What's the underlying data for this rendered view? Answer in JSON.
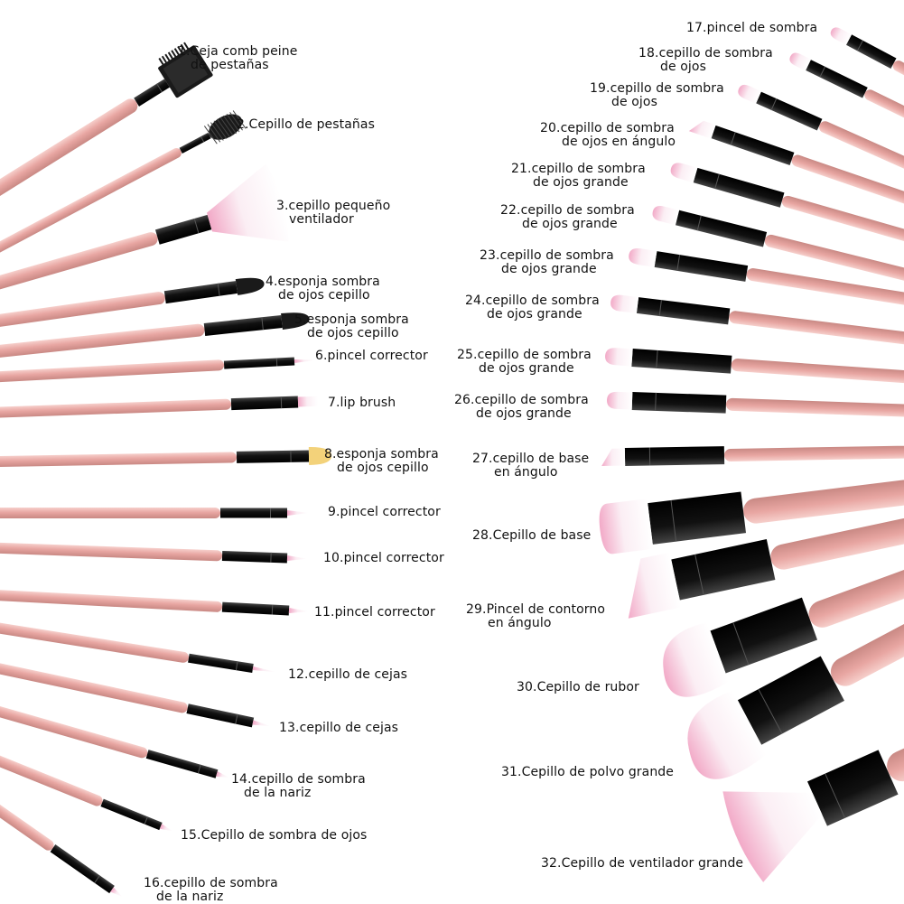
{
  "colors": {
    "handle": "#e8a6a2",
    "handle_highlight": "#f6cfcb",
    "handle_shadow": "#c98984",
    "ferrule": "#111111",
    "bristle_white": "#ffffff",
    "bristle_tip": "#f2a9c7",
    "sponge": "#f3d27a",
    "comb": "#1a1a1a"
  },
  "brushes": [
    {
      "number": "1",
      "icon": "eyebrow-comb-icon",
      "line1": "1.Ceja comb peine",
      "line2": "de pestañas"
    },
    {
      "number": "2",
      "icon": "spoolie-icon",
      "line1": "2.Cepillo de pestañas",
      "line2": ""
    },
    {
      "number": "3",
      "icon": "small-fan-brush-icon",
      "line1": "3.cepillo pequeño",
      "line2": "ventilador"
    },
    {
      "number": "4",
      "icon": "sponge-applicator-icon",
      "line1": "4.esponja sombra",
      "line2": "de ojos cepillo"
    },
    {
      "number": "5",
      "icon": "sponge-applicator-icon",
      "line1": "5.esponja sombra",
      "line2": "de ojos cepillo"
    },
    {
      "number": "6",
      "icon": "concealer-brush-icon",
      "line1": "6.pincel corrector",
      "line2": ""
    },
    {
      "number": "7",
      "icon": "lip-brush-icon",
      "line1": "7.lip brush",
      "line2": ""
    },
    {
      "number": "8",
      "icon": "sponge-applicator-icon",
      "line1": "8.esponja sombra",
      "line2": "de ojos cepillo"
    },
    {
      "number": "9",
      "icon": "concealer-brush-icon",
      "line1": "9.pincel corrector",
      "line2": ""
    },
    {
      "number": "10",
      "icon": "concealer-brush-icon",
      "line1": "10.pincel corrector",
      "line2": ""
    },
    {
      "number": "11",
      "icon": "concealer-brush-icon",
      "line1": "11.pincel corrector",
      "line2": ""
    },
    {
      "number": "12",
      "icon": "eyebrow-brush-icon",
      "line1": "12.cepillo de cejas",
      "line2": ""
    },
    {
      "number": "13",
      "icon": "eyebrow-brush-icon",
      "line1": "13.cepillo de cejas",
      "line2": ""
    },
    {
      "number": "14",
      "icon": "nose-shadow-brush-icon",
      "line1": "14.cepillo de sombra",
      "line2": "de la nariz"
    },
    {
      "number": "15",
      "icon": "eyeshadow-brush-icon",
      "line1": "15.Cepillo de sombra de ojos",
      "line2": ""
    },
    {
      "number": "16",
      "icon": "nose-shadow-brush-icon",
      "line1": "16.cepillo de sombra",
      "line2": "de la nariz"
    },
    {
      "number": "17",
      "icon": "eyeshadow-brush-icon",
      "line1": "17.pincel de sombra",
      "line2": ""
    },
    {
      "number": "18",
      "icon": "eyeshadow-brush-icon",
      "line1": "18.cepillo de sombra",
      "line2": "de ojos"
    },
    {
      "number": "19",
      "icon": "eyeshadow-brush-icon",
      "line1": "19.cepillo de sombra",
      "line2": "de ojos"
    },
    {
      "number": "20",
      "icon": "angled-eyeshadow-brush-icon",
      "line1": "20.cepillo de sombra",
      "line2": "de ojos en ángulo"
    },
    {
      "number": "21",
      "icon": "large-eyeshadow-brush-icon",
      "line1": "21.cepillo de sombra",
      "line2": "de ojos grande"
    },
    {
      "number": "22",
      "icon": "large-eyeshadow-brush-icon",
      "line1": "22.cepillo de sombra",
      "line2": "de ojos grande"
    },
    {
      "number": "23",
      "icon": "large-eyeshadow-brush-icon",
      "line1": "23.cepillo de sombra",
      "line2": "de ojos grande"
    },
    {
      "number": "24",
      "icon": "large-eyeshadow-brush-icon",
      "line1": "24.cepillo de sombra",
      "line2": "de ojos grande"
    },
    {
      "number": "25",
      "icon": "large-eyeshadow-brush-icon",
      "line1": "25.cepillo de sombra",
      "line2": "de ojos grande"
    },
    {
      "number": "26",
      "icon": "large-eyeshadow-brush-icon",
      "line1": "26.cepillo de sombra",
      "line2": "de ojos grande"
    },
    {
      "number": "27",
      "icon": "angled-foundation-brush-icon",
      "line1": "27.cepillo de base",
      "line2": "en ángulo"
    },
    {
      "number": "28",
      "icon": "foundation-brush-icon",
      "line1": "28.Cepillo de base",
      "line2": ""
    },
    {
      "number": "29",
      "icon": "angled-contour-brush-icon",
      "line1": "29.Pincel de contorno",
      "line2": "en ángulo"
    },
    {
      "number": "30",
      "icon": "blush-brush-icon",
      "line1": "30.Cepillo de rubor",
      "line2": ""
    },
    {
      "number": "31",
      "icon": "powder-brush-icon",
      "line1": "31.Cepillo de polvo grande",
      "line2": ""
    },
    {
      "number": "32",
      "icon": "large-fan-brush-icon",
      "line1": "32.Cepillo de ventilador grande",
      "line2": ""
    }
  ]
}
